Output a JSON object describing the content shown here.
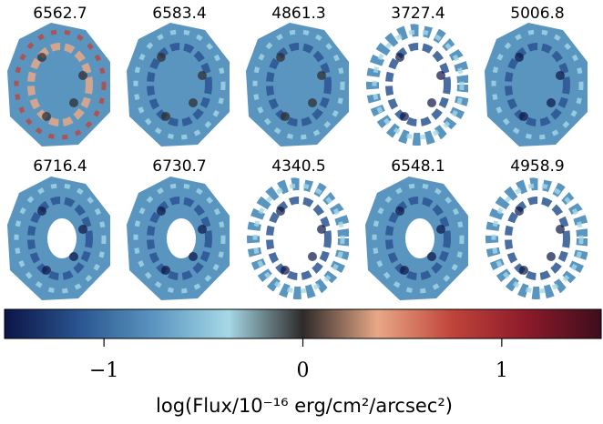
{
  "chart_data": {
    "type": "map-grid",
    "panels": [
      "6562.7",
      "6583.4",
      "4861.3",
      "3727.4",
      "5006.8",
      "6716.4",
      "6730.7",
      "4340.5",
      "6548.1",
      "4958.9"
    ],
    "colorbar": {
      "xlim": [
        -1.5,
        1.5
      ],
      "xticks": [
        {
          "value": -1,
          "label": "−1"
        },
        0,
        1
      ],
      "label": "log(Flux/10⁻¹⁶ erg/cm²/arcsec²)",
      "colormap": [
        "#0b1446",
        "#2a5590",
        "#5a95c0",
        "#a5d8e6",
        "#2e2a2a",
        "#e8a887",
        "#c0443a",
        "#8c1a2a",
        "#3e0d1c"
      ]
    }
  }
}
